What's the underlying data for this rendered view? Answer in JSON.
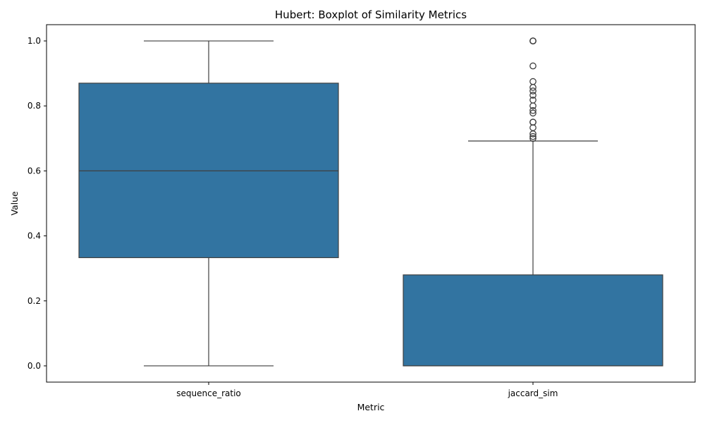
{
  "chart_data": {
    "type": "box",
    "title": "Hubert: Boxplot of Similarity Metrics",
    "xlabel": "Metric",
    "ylabel": "Value",
    "ylim": [
      -0.05,
      1.05
    ],
    "yticks": [
      "0.0",
      "0.2",
      "0.4",
      "0.6",
      "0.8",
      "1.0"
    ],
    "ytick_values": [
      0.0,
      0.2,
      0.4,
      0.6,
      0.8,
      1.0
    ],
    "grid": false,
    "box_color": "#3274a1",
    "line_color": "#3f3f3f",
    "categories": [
      "sequence_ratio",
      "jaccard_sim"
    ],
    "boxes": [
      {
        "category": "sequence_ratio",
        "whisker_low": 0.0,
        "q1": 0.333,
        "median": 0.6,
        "q3": 0.87,
        "whisker_high": 1.0,
        "outliers": []
      },
      {
        "category": "jaccard_sim",
        "whisker_low": 0.0,
        "q1": 0.0,
        "median": 0.0,
        "q3": 0.28,
        "whisker_high": 0.692,
        "outliers": [
          0.7,
          0.706,
          0.714,
          0.733,
          0.75,
          0.75,
          0.778,
          0.786,
          0.8,
          0.818,
          0.833,
          0.846,
          0.857,
          0.875,
          0.923,
          1.0,
          1.0,
          1.0
        ]
      }
    ]
  }
}
